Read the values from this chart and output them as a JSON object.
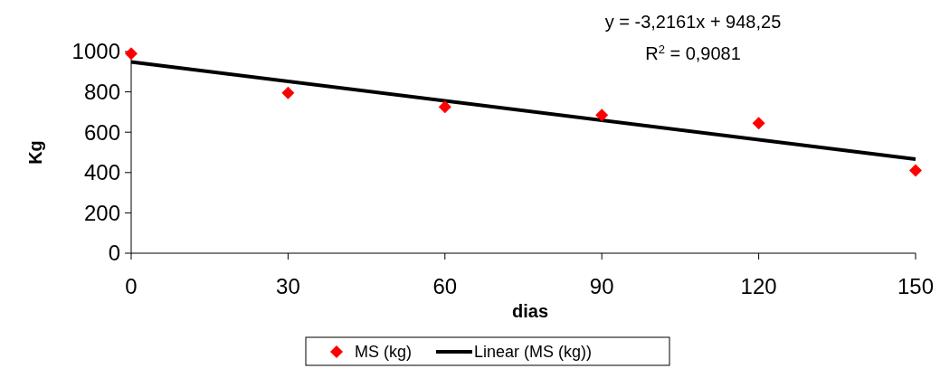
{
  "chart_data": {
    "type": "scatter",
    "xlabel": "dias",
    "ylabel": "Kg",
    "x": [
      0,
      30,
      60,
      90,
      120,
      150
    ],
    "xlim": [
      0,
      150
    ],
    "xticks": [
      0,
      30,
      60,
      90,
      120,
      150
    ],
    "ylim": [
      0,
      1000
    ],
    "yticks": [
      0,
      200,
      400,
      600,
      800,
      1000
    ],
    "grid": false,
    "legend": "bottom",
    "series": [
      {
        "name": "MS (kg)",
        "color": "#ff0000",
        "marker": "diamond",
        "values": [
          990,
          795,
          725,
          685,
          645,
          410
        ]
      },
      {
        "name": "Linear (MS (kg))",
        "type": "line",
        "color": "#000000",
        "x": [
          0,
          150
        ],
        "values": [
          948,
          466
        ],
        "marker": "none"
      }
    ],
    "annotations": [
      "y = -3,2161x + 948,25",
      "R$^{2}$ = 0,9081"
    ]
  }
}
